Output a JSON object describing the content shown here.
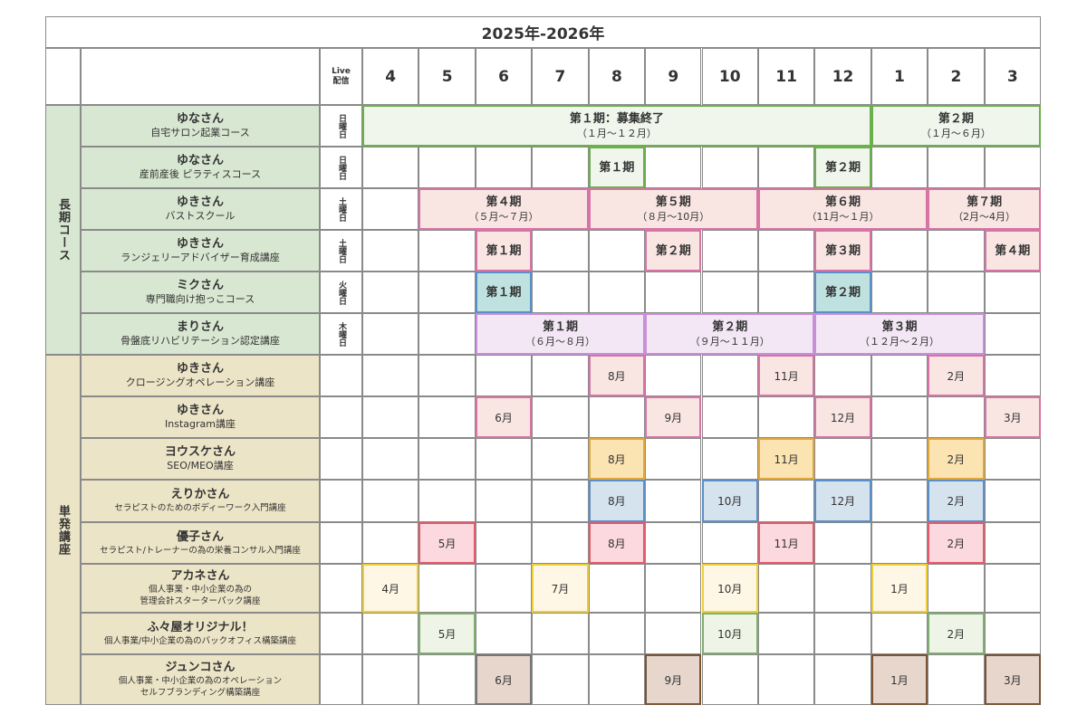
{
  "header": {
    "title": "2025年-2026年",
    "live": "Live\n配信"
  },
  "months": [
    "4",
    "5",
    "6",
    "7",
    "8",
    "9",
    "10",
    "11",
    "12",
    "1",
    "2",
    "3"
  ],
  "categories": [
    {
      "label": "長期コース",
      "fill": "#d8e7d1",
      "rows": [
        0,
        5
      ]
    },
    {
      "label": "単発講座",
      "fill": "#ece4c6",
      "rows": [
        6,
        13
      ]
    }
  ],
  "rows": [
    {
      "name": "ゆなさん",
      "course": "自宅サロン起業コース",
      "day": "日曜日"
    },
    {
      "name": "ゆなさん",
      "course": "産前産後 ピラティスコース",
      "day": "日曜日"
    },
    {
      "name": "ゆきさん",
      "course": "バストスクール",
      "day": "土曜日"
    },
    {
      "name": "ゆきさん",
      "course": "ランジェリーアドバイザー育成講座",
      "day": "土曜日"
    },
    {
      "name": "ミクさん",
      "course": "専門職向け抱っこコース",
      "day": "火曜日"
    },
    {
      "name": "まりさん",
      "course": "骨盤底リハビリテーション認定講座",
      "day": "木曜日"
    },
    {
      "name": "ゆきさん",
      "course": "クロージングオペレーション講座",
      "day": ""
    },
    {
      "name": "ゆきさん",
      "course": "Instagram講座",
      "day": ""
    },
    {
      "name": "ヨウスケさん",
      "course": "SEO/MEO講座",
      "day": ""
    },
    {
      "name": "えりかさん",
      "course": "セラピストのためのボディーワーク入門講座",
      "day": "",
      "small": true
    },
    {
      "name": "優子さん",
      "course": "セラピスト/トレーナーの為の栄養コンサル入門講座",
      "day": "",
      "small": true
    },
    {
      "name": "アカネさん",
      "course": "個人事業・中小企業の為の\n管理会計スターターパック講座",
      "day": "",
      "small": true
    },
    {
      "name": "ふ々屋オリジナル！",
      "course": "個人事業/中小企業の為のバックオフィス構築講座",
      "day": "",
      "small": true
    },
    {
      "name": "ジュンコさん",
      "course": "個人事業・中小企業の為のオペレーション\nセルフブランディング構築講座",
      "day": "",
      "small": true
    }
  ],
  "terms": [
    {
      "row": 0,
      "start": 0,
      "span": 9,
      "label": "第１期：募集終了",
      "sub": "（１月～１２月）",
      "fill": "#f0f6eb",
      "border": "#6ab04c"
    },
    {
      "row": 0,
      "start": 9,
      "span": 3,
      "label": "第２期",
      "sub": "（１月～６月）",
      "fill": "#f0f6eb",
      "border": "#6ab04c"
    },
    {
      "row": 1,
      "start": 4,
      "span": 1,
      "label": "第１期",
      "sub": "",
      "fill": "#f0f6eb",
      "border": "#6ab04c"
    },
    {
      "row": 1,
      "start": 8,
      "span": 1,
      "label": "第２期",
      "sub": "",
      "fill": "#f0f6eb",
      "border": "#6ab04c"
    },
    {
      "row": 2,
      "start": 1,
      "span": 3,
      "label": "第４期",
      "sub": "（５月～７月）",
      "fill": "#f9e6e3",
      "border": "#d873a7"
    },
    {
      "row": 2,
      "start": 4,
      "span": 3,
      "label": "第５期",
      "sub": "（８月～10月）",
      "fill": "#f9e6e3",
      "border": "#d873a7"
    },
    {
      "row": 2,
      "start": 7,
      "span": 3,
      "label": "第６期",
      "sub": "（11月～１月）",
      "fill": "#f9e6e3",
      "border": "#d873a7"
    },
    {
      "row": 2,
      "start": 10,
      "span": 2,
      "label": "第７期",
      "sub": "（2月～4月）",
      "fill": "#f9e6e3",
      "border": "#d873a7"
    },
    {
      "row": 3,
      "start": 2,
      "span": 1,
      "label": "第１期",
      "sub": "",
      "fill": "#f9e6e3",
      "border": "#d873a7"
    },
    {
      "row": 3,
      "start": 5,
      "span": 1,
      "label": "第２期",
      "sub": "",
      "fill": "#f9e6e3",
      "border": "#d873a7"
    },
    {
      "row": 3,
      "start": 8,
      "span": 1,
      "label": "第３期",
      "sub": "",
      "fill": "#f9e6e3",
      "border": "#d873a7"
    },
    {
      "row": 3,
      "start": 11,
      "span": 1,
      "label": "第４期",
      "sub": "",
      "fill": "#f9e6e3",
      "border": "#d873a7"
    },
    {
      "row": 4,
      "start": 2,
      "span": 1,
      "label": "第１期",
      "sub": "",
      "fill": "#bfe2e0",
      "border": "#5b8fc7"
    },
    {
      "row": 4,
      "start": 8,
      "span": 1,
      "label": "第２期",
      "sub": "",
      "fill": "#bfe2e0",
      "border": "#5b8fc7"
    },
    {
      "row": 5,
      "start": 2,
      "span": 3,
      "label": "第１期",
      "sub": "（６月～８月）",
      "fill": "#f3e7f6",
      "border": "#c98fd8"
    },
    {
      "row": 5,
      "start": 5,
      "span": 3,
      "label": "第２期",
      "sub": "（９月～１１月）",
      "fill": "#f3e7f6",
      "border": "#c98fd8"
    },
    {
      "row": 5,
      "start": 8,
      "span": 3,
      "label": "第３期",
      "sub": "（１２月～２月）",
      "fill": "#f3e7f6",
      "border": "#c98fd8"
    }
  ],
  "boxes": [
    {
      "row": 6,
      "col": 4,
      "label": "8月",
      "fill": "#f9e6e3",
      "border": "#d873a7"
    },
    {
      "row": 6,
      "col": 7,
      "label": "11月",
      "fill": "#f9e6e3",
      "border": "#d873a7"
    },
    {
      "row": 6,
      "col": 10,
      "label": "2月",
      "fill": "#f9e6e3",
      "border": "#d873a7"
    },
    {
      "row": 7,
      "col": 2,
      "label": "6月",
      "fill": "#f9e6e3",
      "border": "#d873a7"
    },
    {
      "row": 7,
      "col": 5,
      "label": "9月",
      "fill": "#f9e6e3",
      "border": "#d873a7"
    },
    {
      "row": 7,
      "col": 8,
      "label": "12月",
      "fill": "#f9e6e3",
      "border": "#d873a7"
    },
    {
      "row": 7,
      "col": 11,
      "label": "3月",
      "fill": "#f9e6e3",
      "border": "#d873a7"
    },
    {
      "row": 8,
      "col": 4,
      "label": "8月",
      "fill": "#fbe3b2",
      "border": "#e0a83a"
    },
    {
      "row": 8,
      "col": 7,
      "label": "11月",
      "fill": "#fbe3b2",
      "border": "#e0a83a"
    },
    {
      "row": 8,
      "col": 10,
      "label": "2月",
      "fill": "#fbe3b2",
      "border": "#e0a83a"
    },
    {
      "row": 9,
      "col": 4,
      "label": "8月",
      "fill": "#d5e3ef",
      "border": "#5b8fc7"
    },
    {
      "row": 9,
      "col": 6,
      "label": "10月",
      "fill": "#d5e3ef",
      "border": "#5b8fc7"
    },
    {
      "row": 9,
      "col": 8,
      "label": "12月",
      "fill": "#d5e3ef",
      "border": "#5b8fc7"
    },
    {
      "row": 9,
      "col": 10,
      "label": "2月",
      "fill": "#d5e3ef",
      "border": "#5b8fc7"
    },
    {
      "row": 10,
      "col": 1,
      "label": "5月",
      "fill": "#fbd9df",
      "border": "#e35a69"
    },
    {
      "row": 10,
      "col": 4,
      "label": "8月",
      "fill": "#fbd9df",
      "border": "#e35a69"
    },
    {
      "row": 10,
      "col": 7,
      "label": "11月",
      "fill": "#fbd9df",
      "border": "#e35a69"
    },
    {
      "row": 10,
      "col": 10,
      "label": "2月",
      "fill": "#fbd9df",
      "border": "#e35a69"
    },
    {
      "row": 11,
      "col": 0,
      "label": "4月",
      "fill": "#fff7e5",
      "border": "#eecf3a"
    },
    {
      "row": 11,
      "col": 3,
      "label": "7月",
      "fill": "#fff7e5",
      "border": "#eecf3a"
    },
    {
      "row": 11,
      "col": 6,
      "label": "10月",
      "fill": "#fff7e5",
      "border": "#eecf3a"
    },
    {
      "row": 11,
      "col": 9,
      "label": "1月",
      "fill": "#fff7e5",
      "border": "#eecf3a"
    },
    {
      "row": 12,
      "col": 1,
      "label": "5月",
      "fill": "#eef4e6",
      "border": "#7fae70"
    },
    {
      "row": 12,
      "col": 6,
      "label": "10月",
      "fill": "#eef4e6",
      "border": "#7fae70"
    },
    {
      "row": 12,
      "col": 10,
      "label": "2月",
      "fill": "#eef4e6",
      "border": "#7fae70"
    },
    {
      "row": 13,
      "col": 2,
      "label": "6月",
      "fill": "#e6d6cc",
      "border": "#777777"
    },
    {
      "row": 13,
      "col": 5,
      "label": "9月",
      "fill": "#e6d6cc",
      "border": "#7a5535"
    },
    {
      "row": 13,
      "col": 9,
      "label": "1月",
      "fill": "#e6d6cc",
      "border": "#7a5535"
    },
    {
      "row": 13,
      "col": 11,
      "label": "3月",
      "fill": "#e6d6cc",
      "border": "#7a5535"
    }
  ]
}
